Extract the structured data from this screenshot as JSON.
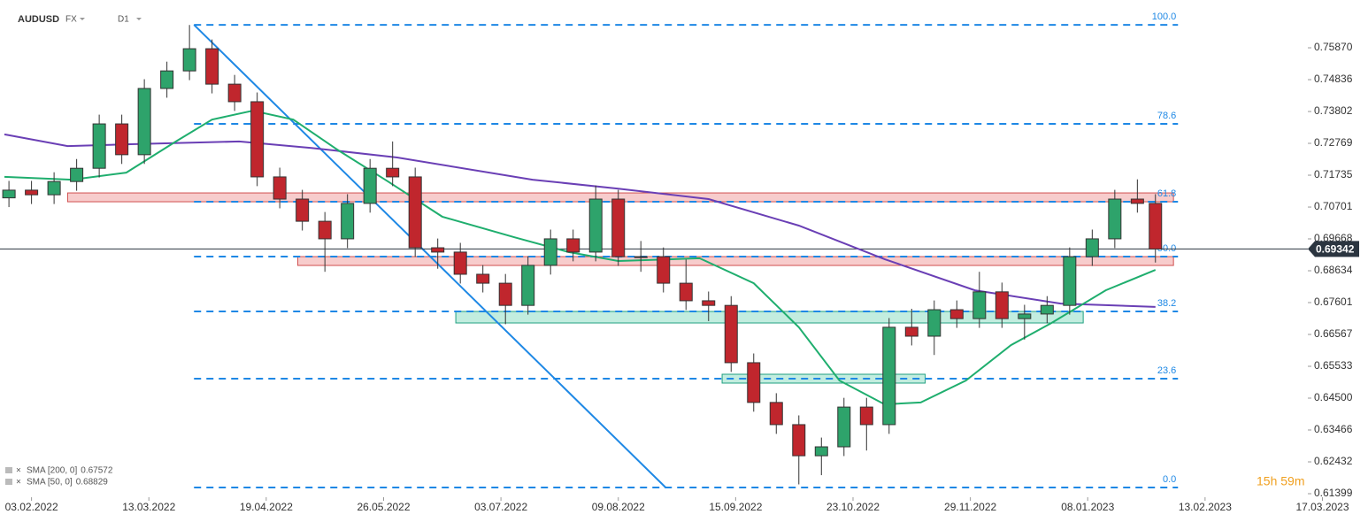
{
  "chart_data": {
    "type": "candlestick",
    "symbol": "AUDUSD",
    "market": "FX",
    "interval": "D1",
    "xlim": [
      -6,
      291
    ],
    "ylim": [
      0.61284,
      0.77421
    ],
    "xticks": [
      {
        "value": 0,
        "label": "03.02.2022"
      },
      {
        "value": 26,
        "label": "13.03.2022"
      },
      {
        "value": 52,
        "label": "19.04.2022"
      },
      {
        "value": 78,
        "label": "26.05.2022"
      },
      {
        "value": 104,
        "label": "03.07.2022"
      },
      {
        "value": 130,
        "label": "09.08.2022"
      },
      {
        "value": 156,
        "label": "15.09.2022"
      },
      {
        "value": 182,
        "label": "23.10.2022"
      },
      {
        "value": 208,
        "label": "29.11.2022"
      },
      {
        "value": 234,
        "label": "08.01.2023"
      },
      {
        "value": 260,
        "label": "13.02.2023"
      },
      {
        "value": 286,
        "label": "17.03.2023"
      }
    ],
    "yticks": [
      {
        "value": 0.7587,
        "label": "0.75870"
      },
      {
        "value": 0.74836,
        "label": "0.74836"
      },
      {
        "value": 0.73802,
        "label": "0.73802"
      },
      {
        "value": 0.72769,
        "label": "0.72769"
      },
      {
        "value": 0.71735,
        "label": "0.71735"
      },
      {
        "value": 0.70701,
        "label": "0.70701"
      },
      {
        "value": 0.69668,
        "label": "0.69668"
      },
      {
        "value": 0.68634,
        "label": "0.68634"
      },
      {
        "value": 0.67601,
        "label": "0.67601"
      },
      {
        "value": 0.66567,
        "label": "0.66567"
      },
      {
        "value": 0.65533,
        "label": "0.65533"
      },
      {
        "value": 0.645,
        "label": "0.64500"
      },
      {
        "value": 0.63466,
        "label": "0.63466"
      },
      {
        "value": 0.62432,
        "label": "0.62432"
      },
      {
        "value": 0.61399,
        "label": "0.61399"
      }
    ],
    "up_color": "#2ea36b",
    "down_color": "#c0262d",
    "candles": [
      [
        -5,
        0.71,
        0.7155,
        0.707,
        0.7125
      ],
      [
        0,
        0.7125,
        0.7155,
        0.708,
        0.711
      ],
      [
        5,
        0.711,
        0.7183,
        0.708,
        0.7153
      ],
      [
        10,
        0.7153,
        0.7226,
        0.7123,
        0.7196
      ],
      [
        15,
        0.7196,
        0.737,
        0.7166,
        0.734
      ],
      [
        20,
        0.734,
        0.737,
        0.721,
        0.724
      ],
      [
        25,
        0.724,
        0.7485,
        0.721,
        0.7455
      ],
      [
        30,
        0.7455,
        0.7542,
        0.7425,
        0.7512
      ],
      [
        35,
        0.7512,
        0.7661,
        0.7482,
        0.7584
      ],
      [
        40,
        0.7584,
        0.7614,
        0.7439,
        0.7469
      ],
      [
        45,
        0.7469,
        0.7499,
        0.7382,
        0.7412
      ],
      [
        50,
        0.7412,
        0.7442,
        0.7138,
        0.7168
      ],
      [
        55,
        0.7168,
        0.7198,
        0.7066,
        0.7096
      ],
      [
        60,
        0.7096,
        0.7126,
        0.6994,
        0.7024
      ],
      [
        65,
        0.7024,
        0.7054,
        0.686,
        0.6967
      ],
      [
        70,
        0.6967,
        0.7112,
        0.6937,
        0.7082
      ],
      [
        75,
        0.7082,
        0.7226,
        0.7052,
        0.7196
      ],
      [
        80,
        0.7196,
        0.7283,
        0.7138,
        0.7168
      ],
      [
        85,
        0.7168,
        0.7198,
        0.6908,
        0.6938
      ],
      [
        90,
        0.6938,
        0.6968,
        0.687,
        0.6924
      ],
      [
        95,
        0.6924,
        0.6954,
        0.6822,
        0.6852
      ],
      [
        100,
        0.6852,
        0.6882,
        0.6793,
        0.6823
      ],
      [
        105,
        0.6823,
        0.6853,
        0.669,
        0.6751
      ],
      [
        110,
        0.6751,
        0.6911,
        0.6721,
        0.6881
      ],
      [
        115,
        0.6881,
        0.6997,
        0.6851,
        0.6967
      ],
      [
        120,
        0.6967,
        0.6997,
        0.6894,
        0.6924
      ],
      [
        125,
        0.6924,
        0.714,
        0.6894,
        0.7096
      ],
      [
        130,
        0.7096,
        0.7126,
        0.6879,
        0.6909
      ],
      [
        135,
        0.6909,
        0.696,
        0.686,
        0.6909
      ],
      [
        140,
        0.6909,
        0.6939,
        0.6793,
        0.6823
      ],
      [
        145,
        0.6823,
        0.69,
        0.6736,
        0.6766
      ],
      [
        150,
        0.6766,
        0.6796,
        0.67,
        0.6751
      ],
      [
        155,
        0.6751,
        0.6781,
        0.6535,
        0.6565
      ],
      [
        160,
        0.6565,
        0.6595,
        0.6406,
        0.6436
      ],
      [
        165,
        0.6436,
        0.6466,
        0.6334,
        0.6364
      ],
      [
        170,
        0.6364,
        0.6394,
        0.617,
        0.6263
      ],
      [
        175,
        0.6263,
        0.6322,
        0.62,
        0.6292
      ],
      [
        180,
        0.6292,
        0.6451,
        0.6262,
        0.6421
      ],
      [
        185,
        0.6421,
        0.6451,
        0.628,
        0.6364
      ],
      [
        190,
        0.6364,
        0.671,
        0.6334,
        0.668
      ],
      [
        195,
        0.668,
        0.674,
        0.6621,
        0.6651
      ],
      [
        200,
        0.6651,
        0.6767,
        0.659,
        0.6737
      ],
      [
        205,
        0.6737,
        0.6767,
        0.6678,
        0.6708
      ],
      [
        210,
        0.6708,
        0.686,
        0.6678,
        0.6795
      ],
      [
        215,
        0.6795,
        0.6825,
        0.6678,
        0.6708
      ],
      [
        220,
        0.6708,
        0.6753,
        0.664,
        0.6723
      ],
      [
        225,
        0.6723,
        0.6781,
        0.6693,
        0.6751
      ],
      [
        230,
        0.6751,
        0.6939,
        0.6721,
        0.6909
      ],
      [
        235,
        0.6909,
        0.6997,
        0.6879,
        0.6967
      ],
      [
        240,
        0.6967,
        0.7126,
        0.6937,
        0.7096
      ],
      [
        245,
        0.7096,
        0.716,
        0.7052,
        0.7082
      ],
      [
        249,
        0.7082,
        0.7112,
        0.689,
        0.6934
      ]
    ],
    "series": [
      {
        "name": "SMA [200, 0]",
        "legend_value": 0.67572,
        "color": "#6a3fb5",
        "x": [
          -6,
          8,
          22,
          46,
          62,
          81,
          111,
          130,
          150,
          170,
          189,
          209,
          228,
          249
        ],
        "values": [
          0.7306,
          0.7268,
          0.7274,
          0.7283,
          0.7262,
          0.7231,
          0.7159,
          0.713,
          0.7096,
          0.701,
          0.6901,
          0.68,
          0.6757,
          0.6746
        ]
      },
      {
        "name": "SMA [50, 0]",
        "legend_value": 0.68829,
        "color": "#1fae6e",
        "x": [
          -6,
          9,
          21,
          32,
          40,
          49,
          58,
          68,
          79,
          91,
          107,
          119,
          130,
          148,
          160,
          170,
          179,
          189,
          197,
          207,
          217,
          226,
          238,
          249
        ],
        "values": [
          0.7168,
          0.7159,
          0.7182,
          0.7283,
          0.7354,
          0.7383,
          0.7354,
          0.7254,
          0.7153,
          0.7039,
          0.6972,
          0.6924,
          0.6895,
          0.6904,
          0.6823,
          0.668,
          0.6507,
          0.643,
          0.6436,
          0.6507,
          0.6622,
          0.6694,
          0.68,
          0.6866
        ]
      }
    ],
    "zones": [
      {
        "x": [
          8,
          253
        ],
        "y": [
          0.70873,
          0.7116
        ],
        "color": "#f4b6b6",
        "border": "#d05050"
      },
      {
        "x": [
          59,
          253
        ],
        "y": [
          0.68806,
          0.69093
        ],
        "color": "#f4b6b6",
        "border": "#d05050"
      },
      {
        "x": [
          94,
          233
        ],
        "y": [
          0.6694,
          0.67313
        ],
        "color": "#a8e6d2",
        "border": "#20a080"
      },
      {
        "x": [
          153,
          198
        ],
        "y": [
          0.64988,
          0.65275
        ],
        "color": "#a8e6d2",
        "border": "#20a080"
      }
    ],
    "fib_color": "#1e88e5",
    "fib_x": [
      36,
      254
    ],
    "fib_levels": [
      {
        "value": 100,
        "label": "100.0"
      },
      {
        "value": 78.6,
        "label": "78.6"
      },
      {
        "value": 61.8,
        "label": "61.8"
      },
      {
        "value": 50,
        "label": "50.0"
      },
      {
        "value": 38.2,
        "label": "38.2"
      },
      {
        "value": 23.6,
        "label": "23.6"
      },
      {
        "value": 0,
        "label": "0.0"
      }
    ],
    "fib_prices": [
      0.76615,
      0.734,
      0.70873,
      0.69093,
      0.67313,
      0.65131,
      0.616
    ],
    "trendline": {
      "x": [
        36,
        140.5
      ],
      "y": [
        0.76615,
        0.616
      ]
    },
    "last_price": 0.69342,
    "countdown": "15h 59m"
  }
}
